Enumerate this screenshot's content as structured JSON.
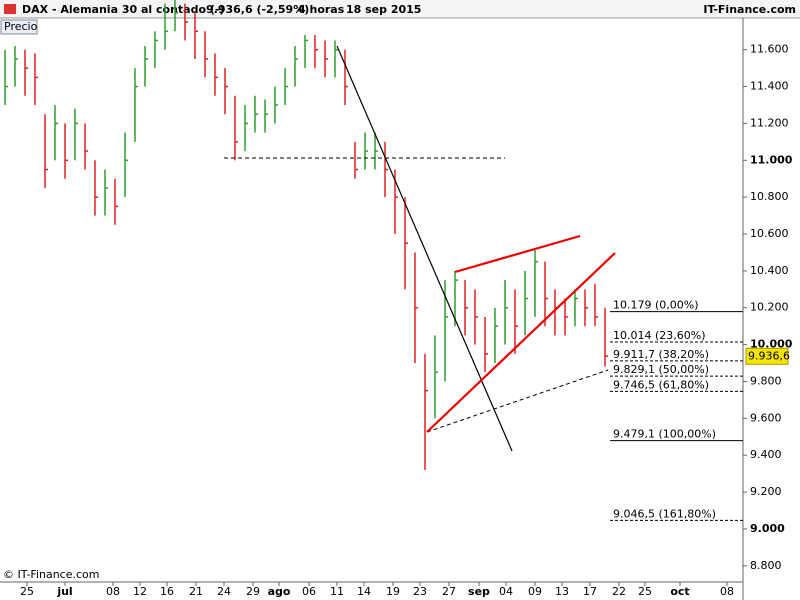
{
  "chart_data": {
    "type": "ohlc",
    "title": "DAX - Alemania 30 al contado (-)",
    "quote": "9.936,6 (-2,59%)",
    "period": "4 horas",
    "date": "18 sep 2015",
    "brand": "IT-Finance.com",
    "series_label": "Precio",
    "copyright": "© IT-Finance.com",
    "up_color": "#2ca02c",
    "down_color": "#e02020",
    "high": [
      11600,
      11620,
      11600,
      11580,
      11250,
      11300,
      11200,
      11280,
      11200,
      11000,
      10950,
      10900,
      11150,
      11500,
      11620,
      11700,
      11850,
      11880,
      11850,
      11800,
      11700,
      11580,
      11500,
      11350,
      11300,
      11350,
      11330,
      11400,
      11500,
      11620,
      11680,
      11680,
      11650,
      11650,
      11600,
      11100,
      11150,
      11150,
      11100,
      10950,
      10800,
      10500,
      9950,
      10050,
      10350,
      10400,
      10350,
      10300,
      10150,
      10200,
      10350,
      10300,
      10400,
      10520,
      10450,
      10300,
      10250,
      10300,
      10300,
      10330,
      10200
    ],
    "low": [
      11300,
      11400,
      11350,
      11300,
      10850,
      11000,
      10900,
      11000,
      10950,
      10700,
      10700,
      10650,
      10800,
      11100,
      11400,
      11500,
      11600,
      11700,
      11650,
      11550,
      11450,
      11350,
      11250,
      11000,
      11050,
      11150,
      11150,
      11200,
      11300,
      11400,
      11500,
      11500,
      11450,
      11450,
      11300,
      10900,
      10950,
      10950,
      10800,
      10600,
      10300,
      9900,
      9320,
      9600,
      9800,
      10100,
      10050,
      10000,
      9850,
      9900,
      10000,
      9950,
      10050,
      10150,
      10100,
      10050,
      10050,
      10100,
      10100,
      10100,
      9880
    ],
    "close": [
      11400,
      11550,
      11500,
      11450,
      10950,
      11200,
      11000,
      11200,
      11050,
      10800,
      10850,
      10750,
      11000,
      11400,
      11550,
      11650,
      11700,
      11800,
      11750,
      11700,
      11550,
      11450,
      11400,
      11100,
      11200,
      11250,
      11250,
      11300,
      11400,
      11550,
      11650,
      11600,
      11550,
      11600,
      11400,
      10950,
      11050,
      11050,
      10950,
      10800,
      10550,
      10200,
      9750,
      9850,
      10150,
      10350,
      10200,
      10150,
      9950,
      10100,
      10200,
      10100,
      10250,
      10450,
      10250,
      10200,
      10150,
      10250,
      10200,
      10150,
      9937
    ],
    "xlim": [
      -0.5,
      73.8
    ],
    "xticks": [
      {
        "value": 2.2,
        "label": "25"
      },
      {
        "value": 6,
        "label": "jul"
      },
      {
        "value": 10.8,
        "label": "08"
      },
      {
        "value": 13.5,
        "label": "12"
      },
      {
        "value": 16.2,
        "label": "16"
      },
      {
        "value": 19.1,
        "label": "21"
      },
      {
        "value": 21.9,
        "label": "24"
      },
      {
        "value": 24.8,
        "label": "29"
      },
      {
        "value": 27.4,
        "label": "ago"
      },
      {
        "value": 30.4,
        "label": "06"
      },
      {
        "value": 33.2,
        "label": "11"
      },
      {
        "value": 35.9,
        "label": "14"
      },
      {
        "value": 38.8,
        "label": "19"
      },
      {
        "value": 41.5,
        "label": "23"
      },
      {
        "value": 44.4,
        "label": "27"
      },
      {
        "value": 47.4,
        "label": "sep"
      },
      {
        "value": 50.1,
        "label": "04"
      },
      {
        "value": 53,
        "label": "09"
      },
      {
        "value": 55.7,
        "label": "13"
      },
      {
        "value": 58.5,
        "label": "17"
      },
      {
        "value": 61.4,
        "label": "22"
      },
      {
        "value": 64,
        "label": "25"
      },
      {
        "value": 67.5,
        "label": "oct"
      },
      {
        "value": 72.2,
        "label": "08"
      }
    ],
    "ylim": [
      8712,
      11772
    ],
    "yticks": [
      {
        "value": 8800,
        "label": "8.800"
      },
      {
        "value": 9000,
        "label": "9.000"
      },
      {
        "value": 9200,
        "label": "9.200"
      },
      {
        "value": 9400,
        "label": "9.400"
      },
      {
        "value": 9600,
        "label": "9.600"
      },
      {
        "value": 9800,
        "label": "9.800"
      },
      {
        "value": 10000,
        "label": "10.000"
      },
      {
        "value": 10200,
        "label": "10.200"
      },
      {
        "value": 10400,
        "label": "10.400"
      },
      {
        "value": 10600,
        "label": "10.600"
      },
      {
        "value": 10800,
        "label": "10.800"
      },
      {
        "value": 11000,
        "label": "11.000"
      },
      {
        "value": 11200,
        "label": "11.200"
      },
      {
        "value": 11400,
        "label": "11.400"
      },
      {
        "value": 11600,
        "label": "11.600"
      }
    ],
    "last_price": {
      "value": 9936.6,
      "label": "9.936,6"
    },
    "fib_levels": [
      {
        "value": 10179,
        "label": "10.179 (0,00%)",
        "style": "solid"
      },
      {
        "value": 10014,
        "label": "10.014 (23,60%)",
        "style": "dashed"
      },
      {
        "value": 9911.7,
        "label": "9.911,7 (38,20%)",
        "style": "dashed"
      },
      {
        "value": 9829.1,
        "label": "9.829,1 (50,00%)",
        "style": "dashed"
      },
      {
        "value": 9746.5,
        "label": "9.746,5 (61,80%)",
        "style": "dashed"
      },
      {
        "value": 9479.1,
        "label": "9.479,1 (100,00%)",
        "style": "solid"
      },
      {
        "value": 9046.5,
        "label": "9.046,5 (161,80%)",
        "style": "dashed"
      }
    ]
  }
}
